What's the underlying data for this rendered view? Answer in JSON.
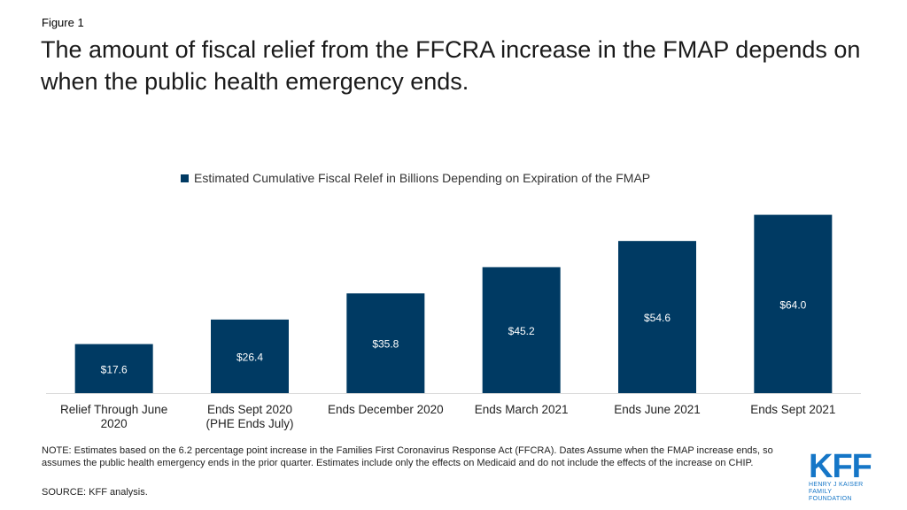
{
  "figure_label": "Figure 1",
  "title": "The amount of fiscal relief from the FFCRA increase in the FMAP depends on when the public health emergency ends.",
  "chart_data": {
    "type": "bar",
    "title": "",
    "xlabel": "",
    "ylabel": "",
    "categories": [
      [
        "Relief Through June",
        "2020"
      ],
      [
        "Ends Sept 2020",
        "(PHE Ends July)"
      ],
      [
        "Ends December  2020"
      ],
      [
        "Ends March 2021"
      ],
      [
        "Ends June 2021"
      ],
      [
        "Ends Sept 2021"
      ]
    ],
    "series": [
      {
        "name": "Estimated Cumulative Fiscal Relef in Billions Depending on Expiration of the FMAP",
        "values": [
          17.6,
          26.4,
          35.8,
          45.2,
          54.6,
          64.0
        ],
        "labels": [
          "$17.6",
          "$26.4",
          "$35.8",
          "$45.2",
          "$54.6",
          "$64.0"
        ],
        "color": "#003a63"
      }
    ],
    "ylim": [
      0,
      68
    ],
    "grid": false,
    "legend_position": "top"
  },
  "note": "NOTE:  Estimates based on the 6.2 percentage point increase in the Families First Coronavirus Response Act (FFCRA). Dates Assume when the FMAP increase ends, so assumes the public health emergency ends in the prior quarter. Estimates include only the effects on Medicaid and do not include the effects of the increase on CHIP.",
  "source": "SOURCE: KFF analysis.",
  "logo": {
    "name": "KFF",
    "subtitle_line1": "HENRY J KAISER",
    "subtitle_line2": "FAMILY FOUNDATION",
    "color": "#1576c7"
  }
}
